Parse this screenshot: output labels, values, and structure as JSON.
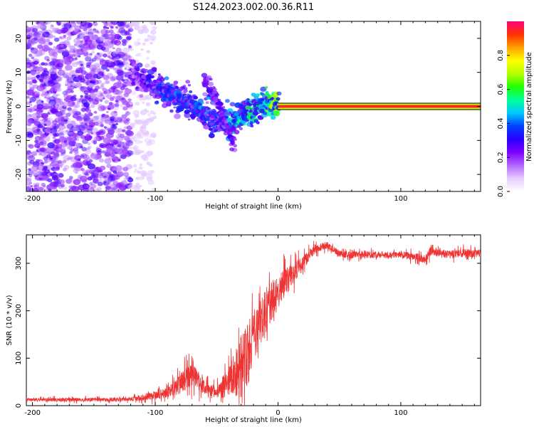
{
  "title": "S124.2023.002.00.36.R11",
  "chart_data": [
    {
      "type": "heatmap",
      "xlabel": "Height of straight line (km)",
      "ylabel": "Frequency (Hz)",
      "xlim": [
        -205,
        165
      ],
      "ylim": [
        -25,
        25
      ],
      "xticks": [
        -200,
        -100,
        0,
        100
      ],
      "yticks": [
        -20,
        -10,
        0,
        10,
        20
      ],
      "colorbar": {
        "label": "Normalized spectral amplitude",
        "range": [
          0,
          1
        ],
        "ticks": [
          "0.0",
          "0.2",
          "0.4",
          "0.6",
          "0.8"
        ],
        "colormap": [
          "#ffffff",
          "#e6ccff",
          "#b266ff",
          "#7a00ff",
          "#2a00ff",
          "#0044ff",
          "#00c8ff",
          "#00ff9a",
          "#22ff00",
          "#b8ff00",
          "#ffff00",
          "#ffa000",
          "#ff3300",
          "#ff0080"
        ]
      },
      "features": [
        {
          "name": "",
          "description": "scattered low-amplitude noise",
          "x_range": [
            -205,
            -120
          ],
          "y_range": [
            -25,
            25
          ],
          "amplitude": 0.1
        },
        {
          "name": "",
          "description": "descending ridge",
          "x": [
            -120,
            -110,
            -100,
            -90,
            -80,
            -70,
            -60,
            -50,
            -40,
            -30,
            -20,
            -10,
            0
          ],
          "y": [
            9,
            8,
            6,
            4,
            2,
            0,
            -2,
            -4,
            -5,
            -3,
            -1,
            1,
            0
          ],
          "amplitude": [
            0.25,
            0.3,
            0.35,
            0.4,
            0.4,
            0.35,
            0.45,
            0.35,
            0.5,
            0.5,
            0.55,
            0.6,
            0.7
          ]
        },
        {
          "name": "",
          "description": "secondary branch",
          "x": [
            -60,
            -55,
            -50,
            -45,
            -40,
            -35
          ],
          "y": [
            8,
            5,
            2,
            -3,
            -8,
            -13
          ],
          "amplitude": 0.25
        },
        {
          "name": "",
          "description": "tone",
          "x_range": [
            0,
            165
          ],
          "y": 0,
          "amplitude": 0.95
        }
      ]
    },
    {
      "type": "line",
      "xlabel": "Height of straight line (km)",
      "ylabel": "SNR (10 * v/v)",
      "xlim": [
        -205,
        165
      ],
      "ylim": [
        0,
        360
      ],
      "xticks": [
        -200,
        -100,
        0,
        100
      ],
      "yticks": [
        0,
        100,
        200,
        300
      ],
      "color": "#ee3333",
      "envelope": {
        "x": [
          -205,
          -120,
          -105,
          -90,
          -80,
          -70,
          -60,
          -50,
          -40,
          -30,
          -25,
          -20,
          -10,
          0,
          10,
          20,
          30,
          40,
          50,
          60,
          80,
          100,
          110,
          120,
          125,
          130,
          140,
          150,
          165
        ],
        "mean": [
          12,
          13,
          20,
          28,
          45,
          65,
          40,
          28,
          50,
          80,
          110,
          145,
          200,
          240,
          270,
          300,
          330,
          338,
          320,
          318,
          318,
          318,
          315,
          308,
          330,
          322,
          318,
          322,
          320
        ],
        "spread": [
          6,
          7,
          14,
          18,
          35,
          45,
          25,
          20,
          55,
          110,
          110,
          90,
          80,
          60,
          45,
          25,
          15,
          12,
          12,
          12,
          12,
          12,
          14,
          14,
          20,
          14,
          14,
          14,
          14
        ]
      }
    }
  ]
}
